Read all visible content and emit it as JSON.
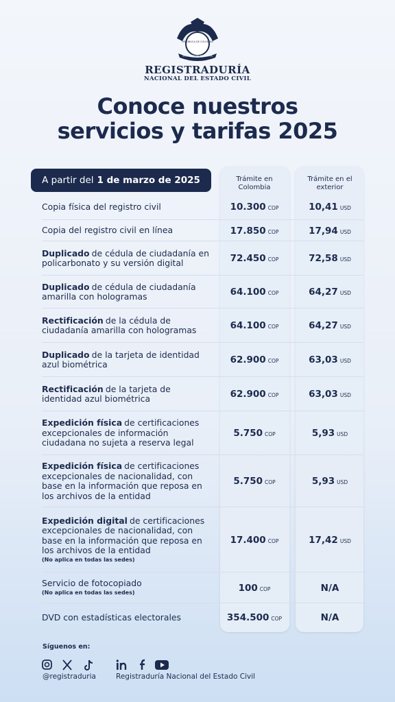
{
  "header": {
    "emblem_top": "REPÚBLICA DE COLOMBIA",
    "emblem_bottom": "ORGANIZACIÓN ELECTORAL",
    "org_line1": "REGISTRADURÍA",
    "org_line2": "NACIONAL DEL ESTADO CIVIL",
    "title_line1": "Conoce nuestros",
    "title_line2": "servicios y tarifas 2025"
  },
  "table": {
    "date_prefix": "A partir del",
    "date": "1 de marzo de 2025",
    "col_colombia": "Trámite en Colombia",
    "col_exterior": "Trámite en el exterior",
    "rows": [
      {
        "label": "Copia física del registro civil",
        "colombia": "10.300",
        "colombia_unit": "COP",
        "exterior": "10,41",
        "exterior_unit": "USD"
      },
      {
        "label": "Copia del registro civil en línea",
        "colombia": "17.850",
        "colombia_unit": "COP",
        "exterior": "17,94",
        "exterior_unit": "USD"
      },
      {
        "label_bold": "Duplicado",
        "label": "de cédula de ciudadanía en policarbonato y su versión digital",
        "colombia": "72.450",
        "colombia_unit": "COP",
        "exterior": "72,58",
        "exterior_unit": "USD"
      },
      {
        "label_bold": "Duplicado",
        "label": "de cédula de ciudadanía amarilla con hologramas",
        "colombia": "64.100",
        "colombia_unit": "COP",
        "exterior": "64,27",
        "exterior_unit": "USD"
      },
      {
        "label_bold": "Rectificación",
        "label": "de la cédula de ciudadanía amarilla con hologramas",
        "colombia": "64.100",
        "colombia_unit": "COP",
        "exterior": "64,27",
        "exterior_unit": "USD"
      },
      {
        "label_bold": "Duplicado",
        "label": "de la tarjeta de identidad azul biométrica",
        "colombia": "62.900",
        "colombia_unit": "COP",
        "exterior": "63,03",
        "exterior_unit": "USD"
      },
      {
        "label_bold": "Rectificación",
        "label": "de la tarjeta de identidad azul biométrica",
        "colombia": "62.900",
        "colombia_unit": "COP",
        "exterior": "63,03",
        "exterior_unit": "USD"
      },
      {
        "label_bold": "Expedición física",
        "label": "de certificaciones excepcionales de información ciudadana no sujeta a reserva legal",
        "colombia": "5.750",
        "colombia_unit": "COP",
        "exterior": "5,93",
        "exterior_unit": "USD"
      },
      {
        "label_bold": "Expedición física",
        "label": "de certificaciones excepcionales de nacionalidad, con base en la información que reposa en los archivos de la entidad",
        "colombia": "5.750",
        "colombia_unit": "COP",
        "exterior": "5,93",
        "exterior_unit": "USD"
      },
      {
        "label_bold": "Expedición digital",
        "label": "de certificaciones excepcionales de nacionalidad, con base en la información que reposa en los archivos de la entidad",
        "note": "(No aplica en todas las sedes)",
        "colombia": "17.400",
        "colombia_unit": "COP",
        "exterior": "17,42",
        "exterior_unit": "USD"
      },
      {
        "label": "Servicio de fotocopiado",
        "note": "(No aplica en todas las sedes)",
        "colombia": "100",
        "colombia_unit": "COP",
        "exterior": "N/A"
      },
      {
        "label": "DVD con estadísticas electorales",
        "colombia": "354.500",
        "colombia_unit": "COP",
        "exterior": "N/A"
      }
    ]
  },
  "footer": {
    "follow": "Síguenos en:",
    "handle": "@registraduria",
    "org": "Registraduría Nacional del Estado Civil"
  }
}
